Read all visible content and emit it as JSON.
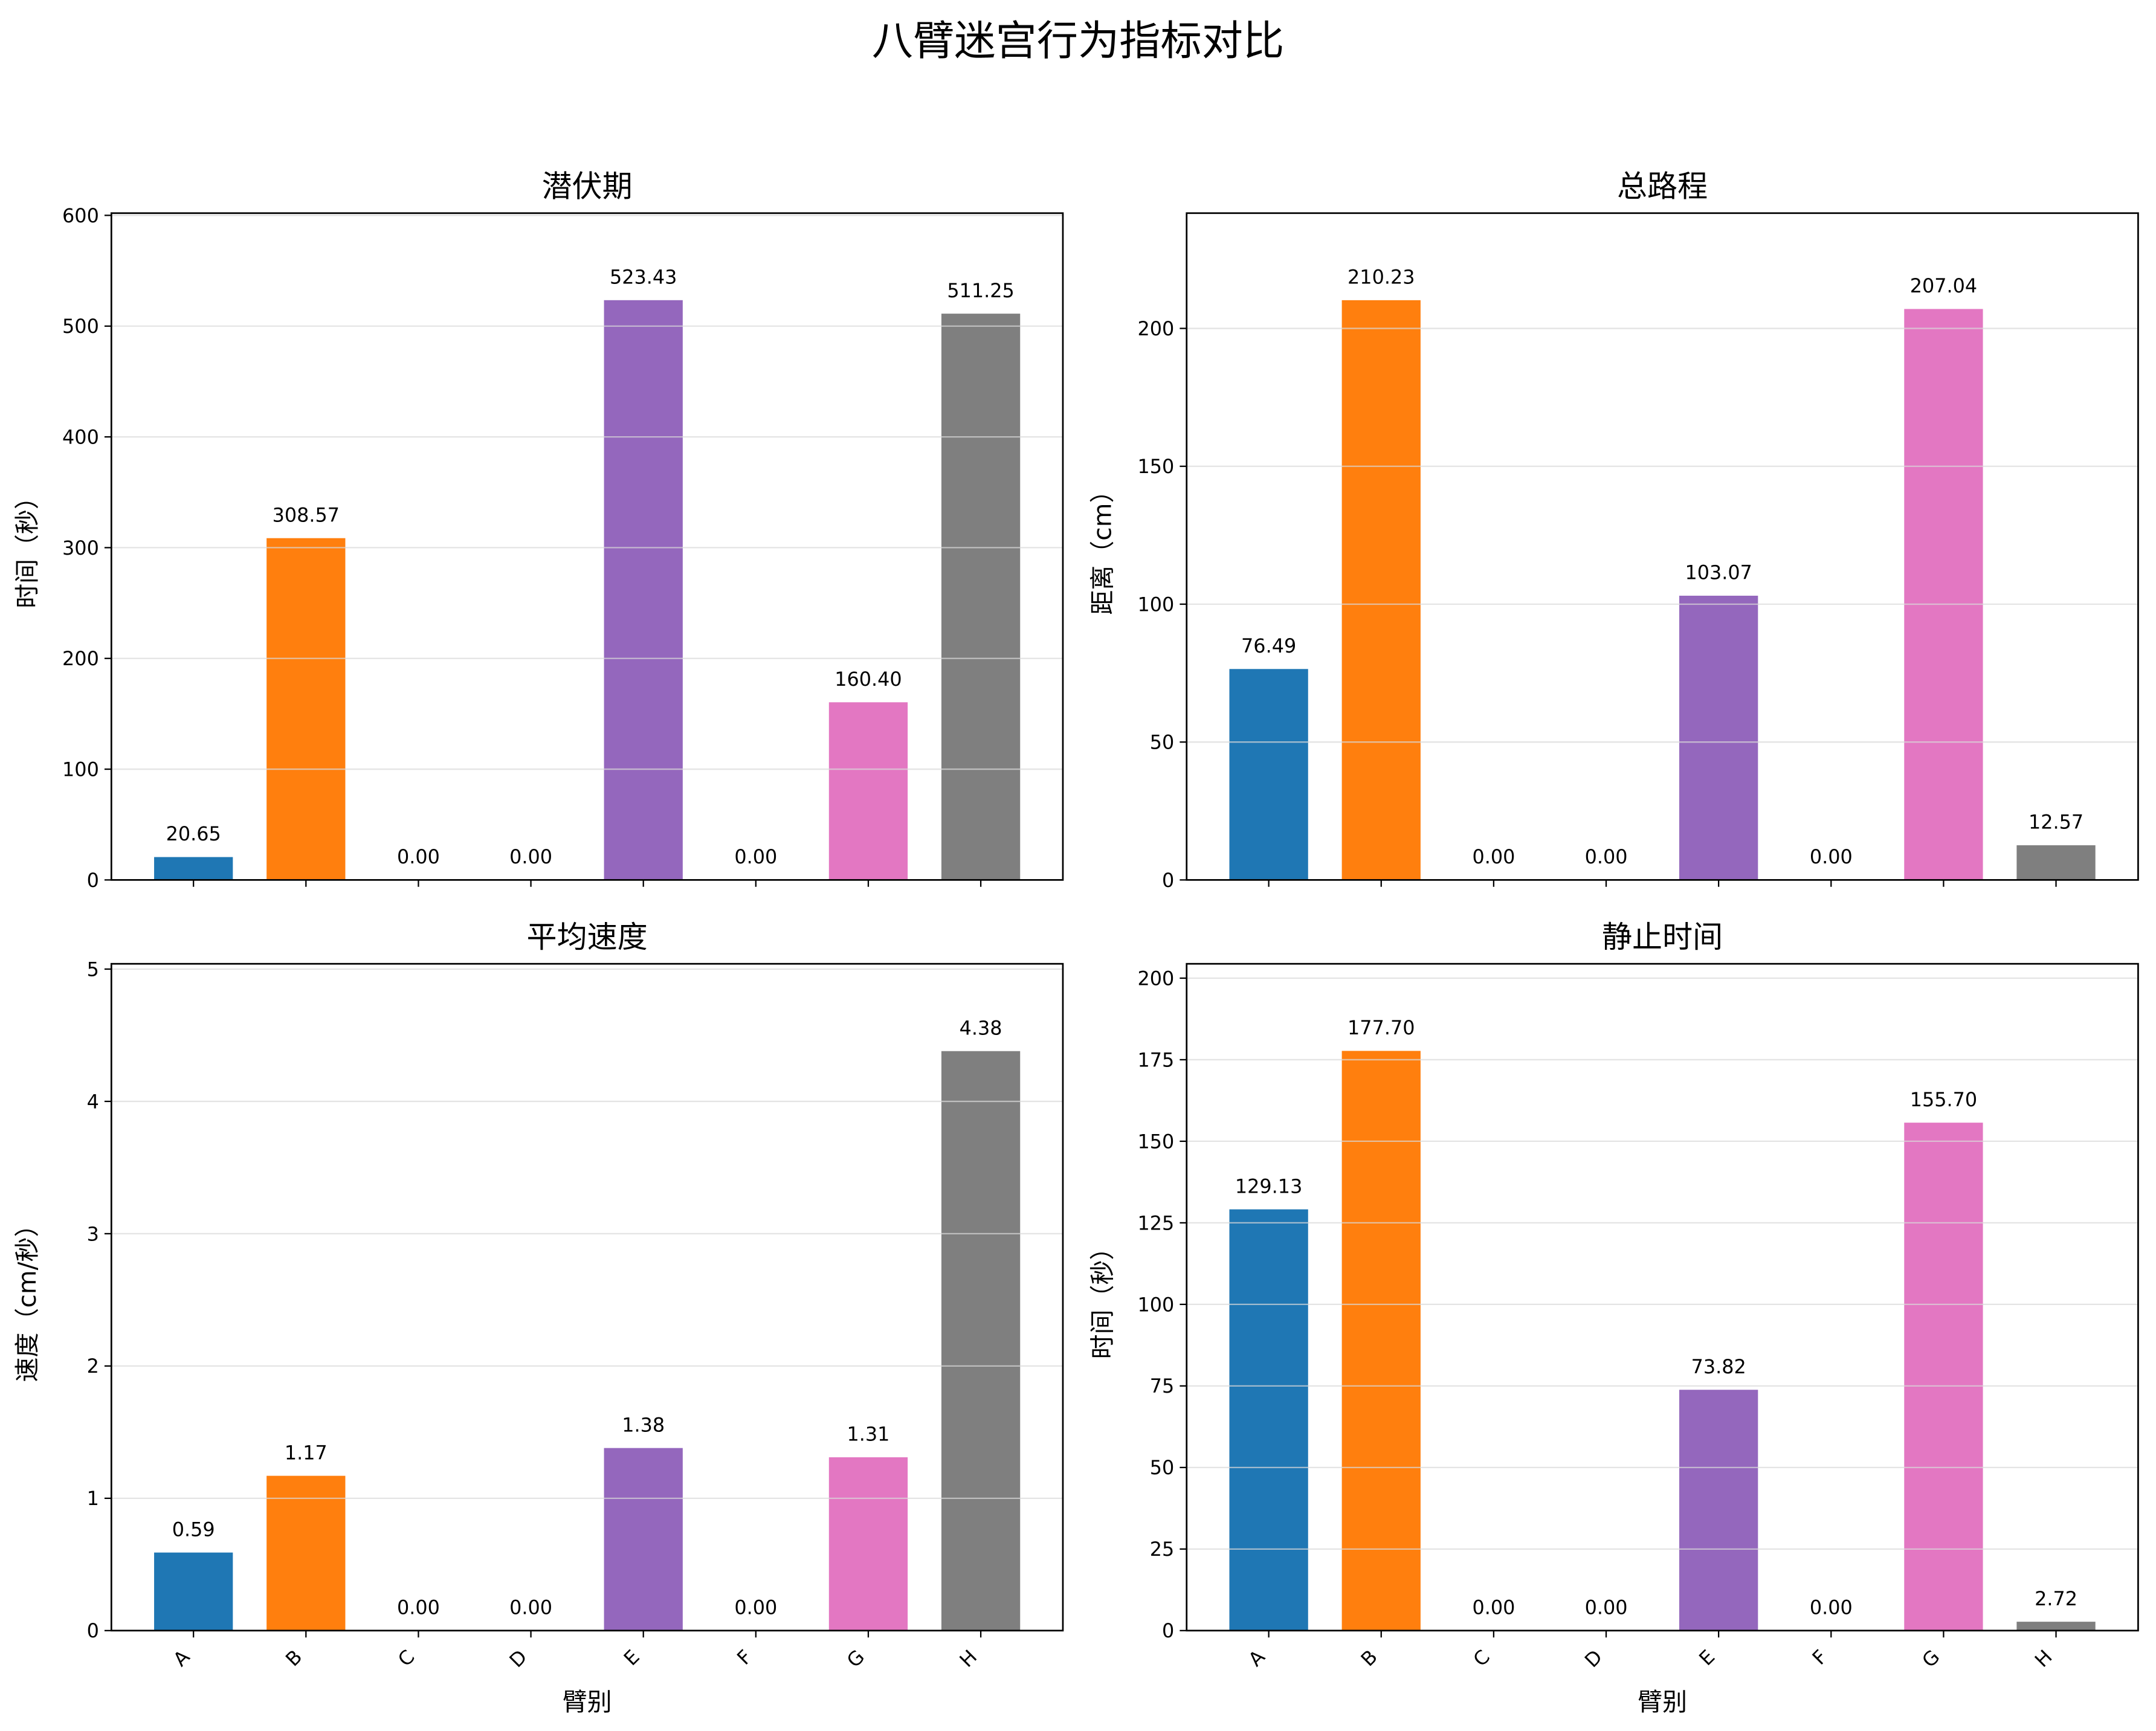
{
  "chart_data": [
    {
      "type": "bar",
      "title": "潜伏期",
      "xlabel": "",
      "ylabel": "时间（秒）",
      "categories": [
        "A",
        "B",
        "C",
        "D",
        "E",
        "F",
        "G",
        "H"
      ],
      "values": [
        20.65,
        308.57,
        0.0,
        0.0,
        523.43,
        0.0,
        160.4,
        511.25
      ],
      "ylim": [
        0,
        602
      ],
      "yticks": [
        0,
        100,
        200,
        300,
        400,
        500,
        600
      ],
      "grid": "y"
    },
    {
      "type": "bar",
      "title": "总路程",
      "xlabel": "",
      "ylabel": "距离（cm）",
      "categories": [
        "A",
        "B",
        "C",
        "D",
        "E",
        "F",
        "G",
        "H"
      ],
      "values": [
        76.49,
        210.23,
        0.0,
        0.0,
        103.07,
        0.0,
        207.04,
        12.57
      ],
      "ylim": [
        0,
        241.8
      ],
      "yticks": [
        0,
        50,
        100,
        150,
        200
      ],
      "grid": "y"
    },
    {
      "type": "bar",
      "title": "平均速度",
      "xlabel": "臂别",
      "ylabel": "速度（cm/秒）",
      "categories": [
        "A",
        "B",
        "C",
        "D",
        "E",
        "F",
        "G",
        "H"
      ],
      "values": [
        0.59,
        1.17,
        0.0,
        0.0,
        1.38,
        0.0,
        1.31,
        4.38
      ],
      "ylim": [
        0,
        5.04
      ],
      "yticks": [
        0,
        1,
        2,
        3,
        4,
        5
      ],
      "grid": "y"
    },
    {
      "type": "bar",
      "title": "静止时间",
      "xlabel": "臂别",
      "ylabel": "时间（秒）",
      "categories": [
        "A",
        "B",
        "C",
        "D",
        "E",
        "F",
        "G",
        "H"
      ],
      "values": [
        129.13,
        177.7,
        0.0,
        0.0,
        73.82,
        0.0,
        155.7,
        2.72
      ],
      "ylim": [
        0,
        204.4
      ],
      "yticks": [
        0,
        25,
        50,
        75,
        100,
        125,
        150,
        175,
        200
      ],
      "grid": "y"
    }
  ],
  "suptitle": "八臂迷宫行为指标对比",
  "colors": [
    "#1f77b4",
    "#ff7f0e",
    "#2ca02c",
    "#d62728",
    "#9467bd",
    "#8c564b",
    "#e377c2",
    "#7f7f7f"
  ]
}
